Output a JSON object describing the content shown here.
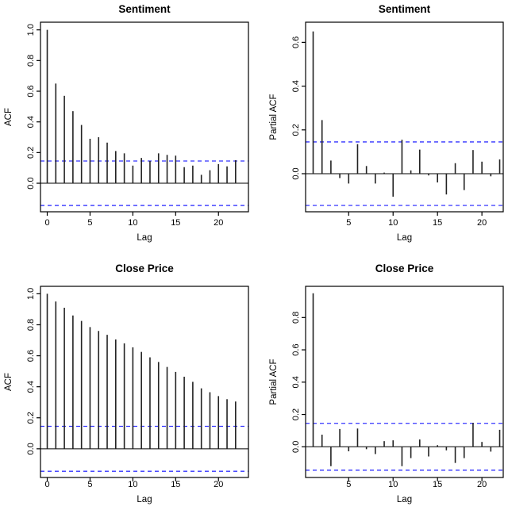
{
  "figure": {
    "background": "#ffffff"
  },
  "colors": {
    "bar": "#222222",
    "axis": "#000000",
    "confidence": "#3333ff"
  },
  "chart_data": [
    {
      "id": "sentiment-acf",
      "type": "bar",
      "title": "Sentiment",
      "ylabel": "ACF",
      "xlabel": "Lag",
      "lag_start": 0,
      "values": [
        1.0,
        0.65,
        0.57,
        0.47,
        0.38,
        0.29,
        0.3,
        0.265,
        0.21,
        0.195,
        0.115,
        0.165,
        0.145,
        0.195,
        0.185,
        0.18,
        0.105,
        0.115,
        0.055,
        0.085,
        0.125,
        0.11,
        0.15
      ],
      "conf_band": 0.145,
      "ylim": [
        -0.186,
        1.05
      ],
      "yticks": [
        0.0,
        0.2,
        0.4,
        0.6,
        0.8,
        1.0
      ],
      "xlim": [
        -0.79,
        23.5
      ],
      "xticks": [
        0,
        5,
        10,
        15,
        20
      ],
      "grid": false,
      "legend": null
    },
    {
      "id": "sentiment-pacf",
      "type": "bar",
      "title": "Sentiment",
      "ylabel": "Partial ACF",
      "xlabel": "Lag",
      "lag_start": 1,
      "values": [
        0.65,
        0.245,
        0.06,
        -0.02,
        -0.045,
        0.135,
        0.035,
        -0.045,
        0.005,
        -0.105,
        0.155,
        0.015,
        0.11,
        -0.008,
        -0.04,
        -0.095,
        0.048,
        -0.075,
        0.108,
        0.055,
        -0.012,
        0.065
      ],
      "conf_band": 0.145,
      "ylim": [
        -0.174,
        0.692
      ],
      "yticks": [
        0.0,
        0.2,
        0.4,
        0.6
      ],
      "xlim": [
        0.15,
        22.4
      ],
      "xticks": [
        5,
        10,
        15,
        20
      ],
      "grid": false,
      "legend": null
    },
    {
      "id": "close-price-acf",
      "type": "bar",
      "title": "Close Price",
      "ylabel": "ACF",
      "xlabel": "Lag",
      "lag_start": 0,
      "values": [
        1.0,
        0.95,
        0.91,
        0.86,
        0.825,
        0.785,
        0.76,
        0.735,
        0.705,
        0.68,
        0.655,
        0.625,
        0.59,
        0.56,
        0.528,
        0.496,
        0.465,
        0.432,
        0.39,
        0.365,
        0.34,
        0.32,
        0.305
      ],
      "conf_band": 0.145,
      "ylim": [
        -0.185,
        1.048
      ],
      "yticks": [
        0.0,
        0.2,
        0.4,
        0.6,
        0.8,
        1.0
      ],
      "xlim": [
        -0.79,
        23.5
      ],
      "xticks": [
        0,
        5,
        10,
        15,
        20
      ],
      "grid": false,
      "legend": null
    },
    {
      "id": "close-price-pacf",
      "type": "bar",
      "title": "Close Price",
      "ylabel": "Partial ACF",
      "xlabel": "Lag",
      "lag_start": 1,
      "values": [
        0.95,
        0.075,
        -0.12,
        0.11,
        -0.028,
        0.113,
        -0.015,
        -0.045,
        0.035,
        0.04,
        -0.12,
        -0.07,
        0.045,
        -0.06,
        0.01,
        -0.022,
        -0.1,
        -0.07,
        0.148,
        0.03,
        -0.03,
        0.105
      ],
      "conf_band": 0.145,
      "ylim": [
        -0.19,
        0.993
      ],
      "yticks": [
        0.0,
        0.2,
        0.4,
        0.6,
        0.8
      ],
      "xlim": [
        0.15,
        22.4
      ],
      "xticks": [
        5,
        10,
        15,
        20
      ],
      "grid": false,
      "legend": null
    }
  ]
}
